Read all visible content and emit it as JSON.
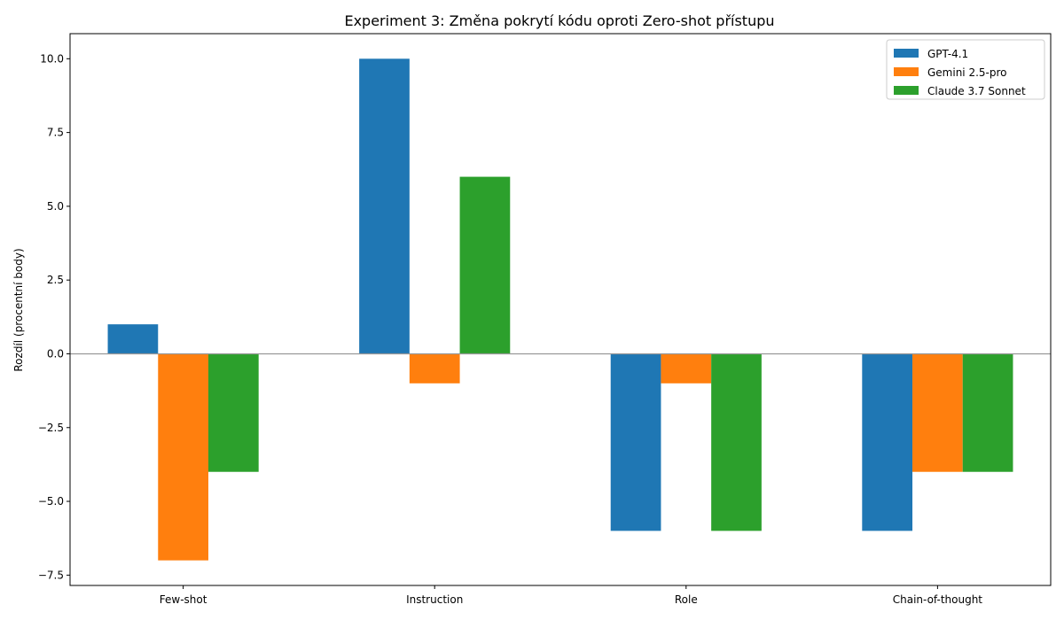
{
  "chart_data": {
    "type": "bar",
    "title": "Experiment 3: Změna pokrytí kódu oproti Zero-shot přístupu",
    "xlabel": "",
    "ylabel": "Rozdíl (procentní body)",
    "categories": [
      "Few-shot",
      "Instruction",
      "Role",
      "Chain-of-thought"
    ],
    "series": [
      {
        "name": "GPT-4.1",
        "color": "#1f77b4",
        "values": [
          1,
          10,
          -6,
          -6
        ]
      },
      {
        "name": "Gemini 2.5-pro",
        "color": "#ff7f0e",
        "values": [
          -7,
          -1,
          -1,
          -4
        ]
      },
      {
        "name": "Claude 3.7 Sonnet",
        "color": "#2ca02c",
        "values": [
          -4,
          6,
          -6,
          -4
        ]
      }
    ],
    "ylim": [
      -7.85,
      10.85
    ],
    "yticks": [
      -7.5,
      -5.0,
      -2.5,
      0.0,
      2.5,
      5.0,
      7.5,
      10.0
    ],
    "ytick_labels": [
      "−7.5",
      "−5.0",
      "−2.5",
      "0.0",
      "2.5",
      "5.0",
      "7.5",
      "10.0"
    ],
    "zero_line": true,
    "grid": false,
    "legend_position": "top-right"
  }
}
